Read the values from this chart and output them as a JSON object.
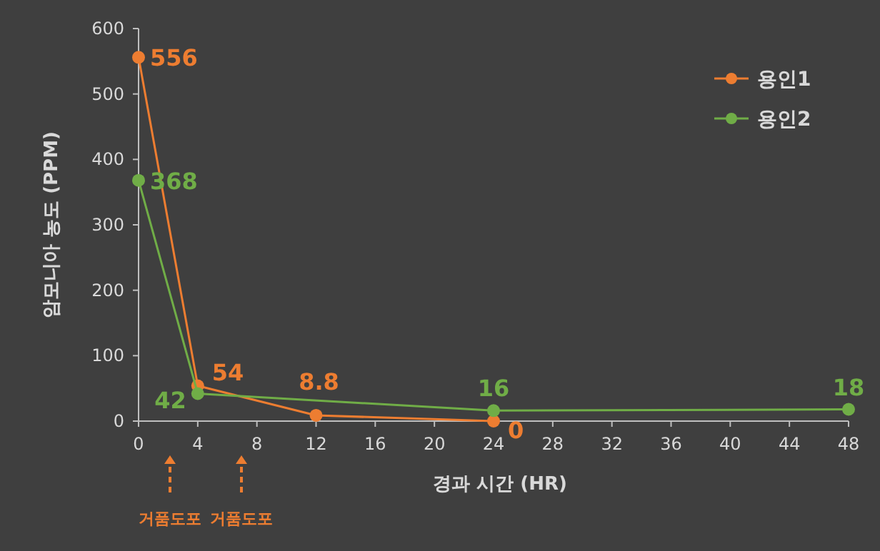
{
  "chart_data": {
    "type": "line",
    "xlabel": "경과 시간 (HR)",
    "ylabel": "암모니아 농도 (PPM)",
    "xlim": [
      0,
      48
    ],
    "xticks": [
      0,
      4,
      8,
      12,
      16,
      20,
      24,
      28,
      32,
      36,
      40,
      44,
      48
    ],
    "ylim": [
      0,
      600
    ],
    "yticks": [
      0,
      100,
      200,
      300,
      400,
      500,
      600
    ],
    "series": [
      {
        "name": "용인1",
        "color": "#ed7d31",
        "x": [
          0,
          4,
          12,
          24
        ],
        "values": [
          556,
          54,
          8.8,
          0
        ]
      },
      {
        "name": "용인2",
        "color": "#70ad47",
        "x": [
          0,
          4,
          24,
          48
        ],
        "values": [
          368,
          42,
          16,
          18
        ]
      }
    ],
    "data_labels": true,
    "marker": "circle",
    "line_style": "solid",
    "legend": "top right",
    "grid": false,
    "annotations": [
      "거품도포",
      "거품도포"
    ]
  }
}
